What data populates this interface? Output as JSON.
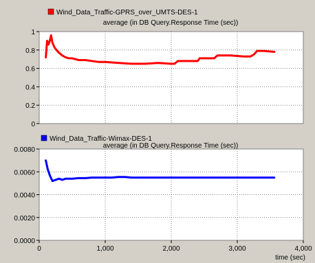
{
  "colors": {
    "background": "#d4d0c8",
    "plot_background": "#ffffff",
    "grid": "#808080",
    "series1": "#ff0000",
    "series2": "#0000ff"
  },
  "x_axis": {
    "label": "time (sec)",
    "range": [
      0,
      4000
    ],
    "ticks": [
      0,
      1000,
      2000,
      3000,
      4000
    ],
    "tick_labels": [
      "0",
      "1,000",
      "2,000",
      "3,000",
      "4,000"
    ]
  },
  "chart_data": [
    {
      "type": "line",
      "legend": "Wind_Data_Traffic-GPRS_over_UMTS-DES-1",
      "subtitle": "average (in DB Query.Response Time (sec))",
      "ylim": [
        0,
        1
      ],
      "y_ticks": [
        0,
        0.2,
        0.4,
        0.6,
        0.8,
        1
      ],
      "y_tick_labels": [
        "0",
        "0.2",
        "0.4",
        "0.6",
        "0.8",
        "1"
      ],
      "grid": true,
      "series": [
        {
          "name": "Wind_Data_Traffic-GPRS_over_UMTS-DES-1",
          "x": [
            100,
            120,
            140,
            160,
            180,
            200,
            230,
            260,
            300,
            350,
            400,
            450,
            500,
            600,
            700,
            800,
            900,
            1000,
            1200,
            1400,
            1600,
            1800,
            2000,
            2050,
            2100,
            2300,
            2400,
            2430,
            2600,
            2650,
            2700,
            2900,
            3100,
            3200,
            3250,
            3300,
            3400,
            3560
          ],
          "y": [
            0.72,
            0.9,
            0.86,
            0.9,
            0.96,
            0.88,
            0.83,
            0.8,
            0.77,
            0.74,
            0.72,
            0.71,
            0.71,
            0.69,
            0.69,
            0.68,
            0.67,
            0.67,
            0.66,
            0.65,
            0.65,
            0.66,
            0.65,
            0.65,
            0.68,
            0.68,
            0.68,
            0.71,
            0.71,
            0.71,
            0.74,
            0.74,
            0.73,
            0.73,
            0.75,
            0.79,
            0.79,
            0.78
          ]
        }
      ]
    },
    {
      "type": "line",
      "legend": "Wind_Data_Traffic-Wimax-DES-1",
      "subtitle": "average (in DB Query.Response Time (sec))",
      "ylim": [
        0,
        0.008
      ],
      "y_ticks": [
        0,
        0.002,
        0.004,
        0.006,
        0.008
      ],
      "y_tick_labels": [
        "0.0000",
        "0.0020",
        "0.0040",
        "0.0060",
        "0.0080"
      ],
      "grid": true,
      "series": [
        {
          "name": "Wind_Data_Traffic-Wimax-DES-1",
          "x": [
            100,
            130,
            160,
            200,
            250,
            300,
            350,
            400,
            500,
            600,
            700,
            800,
            900,
            1000,
            1100,
            1200,
            1300,
            1400,
            1600,
            1800,
            2000,
            2200,
            2400,
            2600,
            2800,
            3000,
            3200,
            3400,
            3560
          ],
          "y": [
            0.007,
            0.0062,
            0.0057,
            0.0052,
            0.0053,
            0.0054,
            0.0053,
            0.0054,
            0.0054,
            0.00545,
            0.00545,
            0.0055,
            0.0055,
            0.0055,
            0.0055,
            0.00555,
            0.00555,
            0.0055,
            0.0055,
            0.0055,
            0.0055,
            0.0055,
            0.0055,
            0.0055,
            0.0055,
            0.0055,
            0.0055,
            0.0055,
            0.0055
          ]
        }
      ]
    }
  ]
}
